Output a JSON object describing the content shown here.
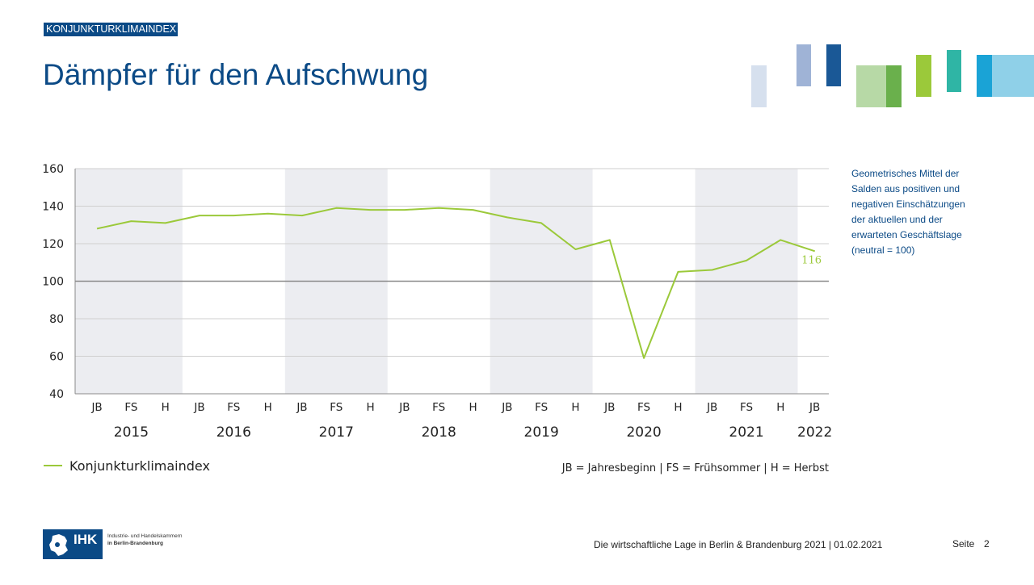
{
  "header": {
    "section_tag": "KONJUNKTURKLIMAINDEX",
    "title": "Dämpfer für den Aufschwung"
  },
  "colors": {
    "brand": "#0b4a86",
    "series": "#9bc93a",
    "band": "#ecedf1",
    "grid": "#cfcfcf",
    "axis_line": "#8a8a8a"
  },
  "chart_data": {
    "type": "line",
    "title": "Dämpfer für den Aufschwung",
    "xlabel": "",
    "ylabel": "",
    "ylim": [
      40,
      160
    ],
    "yticks": [
      40,
      60,
      80,
      100,
      120,
      140,
      160
    ],
    "reference_line": 100,
    "categories": [
      "JB",
      "FS",
      "H",
      "JB",
      "FS",
      "H",
      "JB",
      "FS",
      "H",
      "JB",
      "FS",
      "H",
      "JB",
      "FS",
      "H",
      "JB",
      "FS",
      "H",
      "JB",
      "FS",
      "H",
      "JB"
    ],
    "years": [
      "2015",
      "2016",
      "2017",
      "2018",
      "2019",
      "2020",
      "2021",
      "2022"
    ],
    "series": [
      {
        "name": "Konjunkturklimaindex",
        "values": [
          128,
          132,
          131,
          135,
          135,
          136,
          135,
          139,
          138,
          138,
          139,
          138,
          134,
          131,
          117,
          122,
          59,
          105,
          106,
          111,
          122,
          116
        ]
      }
    ],
    "end_label": "116",
    "legend": {
      "entry": "Konjunkturklimaindex",
      "abbreviations": "JB = Jahresbeginn | FS = Frühsommer | H = Herbst",
      "placement": "bottom"
    },
    "grid": true
  },
  "note": "Geometrisches Mittel der Salden aus positiven und negativen Einschätzungen der aktuellen und der erwarteten Geschäftslage (neutral = 100)",
  "footer": {
    "text": "Die wirtschaftliche Lage in Berlin & Brandenburg  2021 | 01.02.2021",
    "page_label": "Seite",
    "page_number": "2"
  },
  "logo": {
    "abbr": "IHK",
    "line1": "Industrie- und Handelskammern",
    "line2": "in Berlin-Brandenburg"
  }
}
